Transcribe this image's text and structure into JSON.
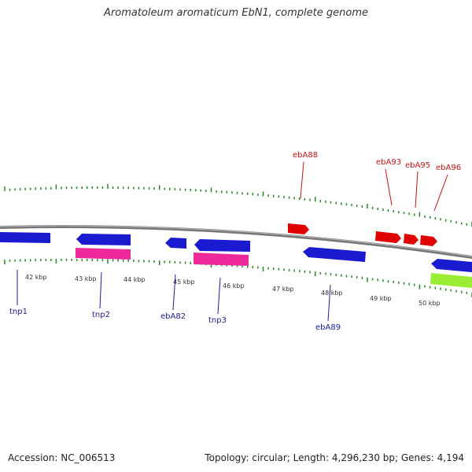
{
  "title": "Aromatoleum aromaticum EbN1, complete genome",
  "footer": {
    "accession": "Accession: NC_006513",
    "summary": "Topology: circular; Length: 4,296,230 bp; Genes: 4,194"
  },
  "colors": {
    "backbone": "#888888",
    "gene_forward_blue": "#1a1ad0",
    "gene_red": "#e00000",
    "gene_magenta": "#ee2a9a",
    "gene_green": "#99ee33",
    "label_blue": "#1a1aa0",
    "label_red": "#cc1111",
    "tick": "#228822"
  },
  "scale": {
    "unit": "kbp",
    "ticks": [
      42,
      43,
      44,
      45,
      46,
      47,
      48,
      49,
      50
    ]
  },
  "gene_labels": [
    {
      "name": "tnp1",
      "color": "blue"
    },
    {
      "name": "tnp2",
      "color": "blue"
    },
    {
      "name": "ebA82",
      "color": "blue"
    },
    {
      "name": "tnp3",
      "color": "blue"
    },
    {
      "name": "ebA89",
      "color": "blue"
    },
    {
      "name": "ebA88",
      "color": "red"
    },
    {
      "name": "ebA93",
      "color": "red"
    },
    {
      "name": "ebA95",
      "color": "red"
    },
    {
      "name": "ebA96",
      "color": "red"
    }
  ]
}
